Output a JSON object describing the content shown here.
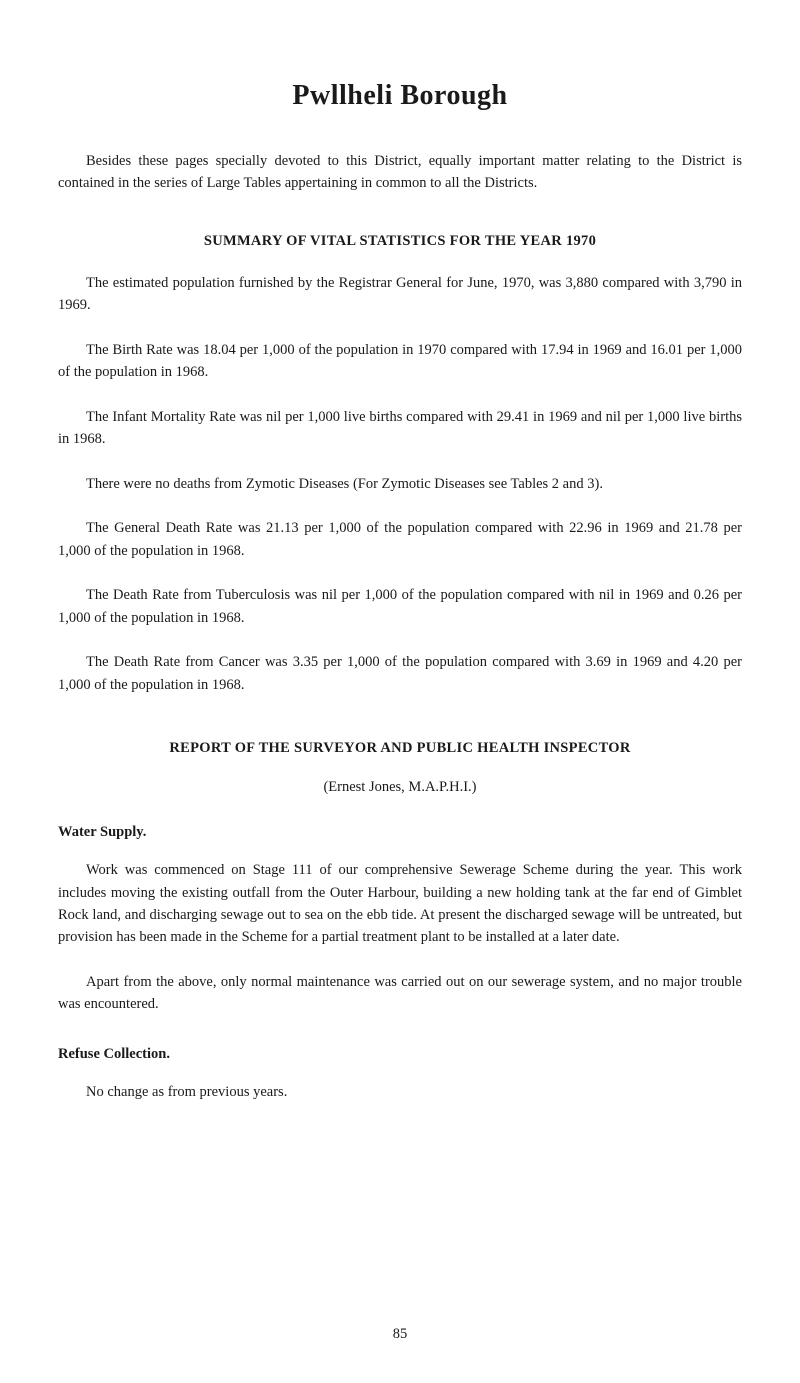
{
  "title": "Pwllheli Borough",
  "intro": "Besides these pages specially devoted to this District, equally important matter relating to the District is contained in the series of Large Tables appertaining in common to all the Districts.",
  "summary": {
    "heading": "SUMMARY OF VITAL STATISTICS FOR THE YEAR 1970",
    "paragraphs": [
      "The estimated population furnished by the Registrar General for June, 1970, was 3,880 compared with 3,790 in 1969.",
      "The Birth Rate was 18.04 per 1,000 of the population in 1970 compared with 17.94 in 1969 and 16.01 per 1,000 of the population in 1968.",
      "The Infant Mortality Rate was nil per 1,000 live births compared with 29.41 in 1969 and nil per 1,000 live births in 1968.",
      "There were no deaths from Zymotic Diseases (For Zymotic Diseases see Tables 2 and 3).",
      "The General Death Rate was 21.13 per 1,000 of the population compared with 22.96 in 1969 and 21.78 per 1,000 of the population in 1968.",
      "The Death Rate from Tuberculosis was nil per 1,000 of the population compared with nil in 1969 and 0.26 per 1,000 of the population in 1968.",
      "The Death Rate from Cancer was 3.35 per 1,000 of the population compared with 3.69 in 1969 and 4.20 per 1,000 of the population in 1968."
    ]
  },
  "report": {
    "heading": "REPORT OF THE SURVEYOR AND PUBLIC HEALTH INSPECTOR",
    "author": "(Ernest Jones, M.A.P.H.I.)",
    "sections": [
      {
        "title": "Water Supply.",
        "paragraphs": [
          "Work was commenced on Stage 111 of our comprehensive Sewerage Scheme during the year. This work includes moving the existing outfall from the Outer Harbour, building a new holding tank at the far end of Gimblet Rock land, and discharging sewage out to sea on the ebb tide. At present the discharged sewage will be untreated, but provision has been made in the Scheme for a partial treatment plant to be installed at a later date.",
          "Apart from the above, only normal maintenance was carried out on our sewerage system, and no major trouble was encountered."
        ]
      },
      {
        "title": "Refuse Collection.",
        "paragraphs": [
          "No change as from previous years."
        ]
      }
    ]
  },
  "page_number": "85"
}
